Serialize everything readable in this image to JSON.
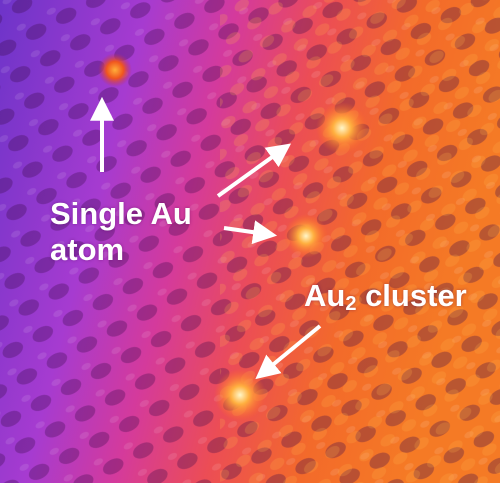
{
  "image": {
    "description_colors": {
      "cool_side": "#7a30c8",
      "mid": "#d7368f",
      "warm_side": "#f06a1e",
      "hot": "#ffd24a",
      "annotation": "#ffffff"
    }
  },
  "labels": {
    "single_au_line1": "Single Au",
    "single_au_line2": "atom",
    "cluster_prefix": "Au",
    "cluster_subscript": "2",
    "cluster_suffix": " cluster"
  }
}
